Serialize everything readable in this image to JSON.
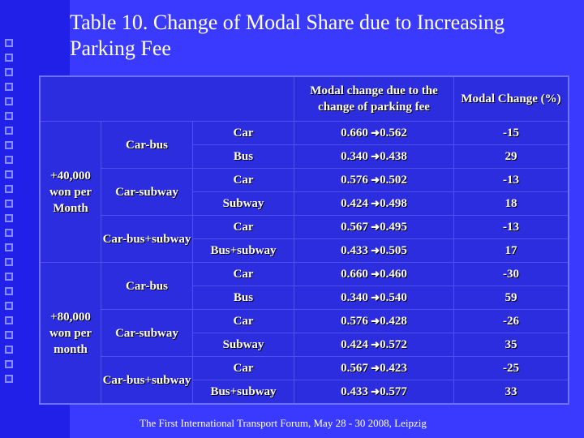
{
  "title": "Table 10.  Change of Modal Share due to Increasing Parking Fee",
  "header": {
    "modal_change": "Modal change due to the change of parking fee",
    "modal_change_pct": "Modal Change (%)"
  },
  "groups": [
    {
      "label": "+40,000 won per Month",
      "subgroups": [
        {
          "label": "Car-bus",
          "rows": [
            {
              "mode": "Car",
              "from": "0.660",
              "to": "0.562",
              "pct": "-15"
            },
            {
              "mode": "Bus",
              "from": "0.340",
              "to": "0.438",
              "pct": "29"
            }
          ]
        },
        {
          "label": "Car-subway",
          "rows": [
            {
              "mode": "Car",
              "from": "0.576",
              "to": "0.502",
              "pct": "-13"
            },
            {
              "mode": "Subway",
              "from": "0.424",
              "to": "0.498",
              "pct": "18"
            }
          ]
        },
        {
          "label": "Car-bus+subway",
          "rows": [
            {
              "mode": "Car",
              "from": "0.567",
              "to": "0.495",
              "pct": "-13"
            },
            {
              "mode": "Bus+subway",
              "from": "0.433",
              "to": "0.505",
              "pct": "17"
            }
          ]
        }
      ]
    },
    {
      "label": "+80,000 won per month",
      "subgroups": [
        {
          "label": "Car-bus",
          "rows": [
            {
              "mode": "Car",
              "from": "0.660",
              "to": "0.460",
              "pct": "-30"
            },
            {
              "mode": "Bus",
              "from": "0.340",
              "to": "0.540",
              "pct": "59"
            }
          ]
        },
        {
          "label": "Car-subway",
          "rows": [
            {
              "mode": "Car",
              "from": "0.576",
              "to": "0.428",
              "pct": "-26"
            },
            {
              "mode": "Subway",
              "from": "0.424",
              "to": "0.572",
              "pct": "35"
            }
          ]
        },
        {
          "label": "Car-bus+subway",
          "rows": [
            {
              "mode": "Car",
              "from": "0.567",
              "to": "0.423",
              "pct": "-25"
            },
            {
              "mode": "Bus+subway",
              "from": "0.433",
              "to": "0.577",
              "pct": "33"
            }
          ]
        }
      ]
    }
  ],
  "footer": "The First International Transport Forum, May 28 - 30  2008,  Leipzig",
  "colors": {
    "background": "#3a3aff",
    "table": "#2d2de0",
    "text": "#ffffff"
  }
}
